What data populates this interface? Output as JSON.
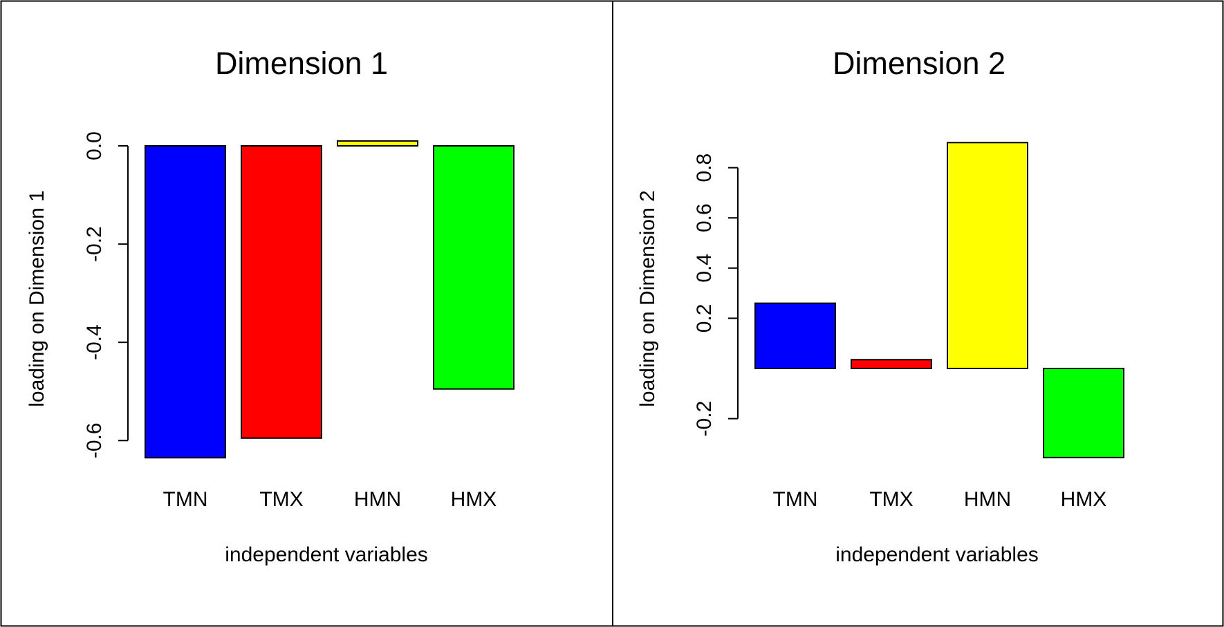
{
  "chart_data": [
    {
      "type": "bar",
      "title": "Dimension 1",
      "xlabel": "independent variables",
      "ylabel": "loading on Dimension 1",
      "categories": [
        "TMN",
        "TMX",
        "HMN",
        "HMX"
      ],
      "values": [
        -0.635,
        -0.595,
        0.01,
        -0.495
      ],
      "colors": [
        "#0000ff",
        "#ff0000",
        "#ffff00",
        "#00ff00"
      ],
      "yticks": [
        0.0,
        -0.2,
        -0.4,
        -0.6
      ],
      "ytick_labels": [
        "0.0",
        "-0.2",
        "-0.4",
        "-0.6"
      ],
      "ylim": [
        -0.66,
        0.04
      ],
      "grid": false,
      "legend": "none"
    },
    {
      "type": "bar",
      "title": "Dimension 2",
      "xlabel": "independent variables",
      "ylabel": "loading on Dimension 2",
      "categories": [
        "TMN",
        "TMX",
        "HMN",
        "HMX"
      ],
      "values": [
        0.26,
        0.035,
        0.9,
        -0.355
      ],
      "colors": [
        "#0000ff",
        "#ff0000",
        "#ffff00",
        "#00ff00"
      ],
      "yticks": [
        -0.2,
        0.2,
        0.4,
        0.6,
        0.8
      ],
      "ytick_labels": [
        "-0.2",
        "0.2",
        "0.4",
        "0.6",
        "0.8"
      ],
      "ylim": [
        -0.4,
        0.95
      ],
      "grid": false,
      "legend": "none"
    }
  ]
}
